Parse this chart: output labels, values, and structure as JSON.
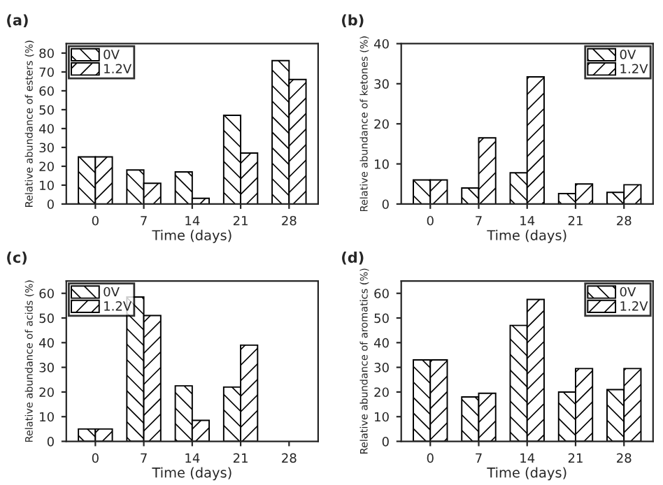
{
  "chart_data": [
    {
      "type": "bar",
      "title": "(a)",
      "xlabel": "Time (days)",
      "ylabel": "Relative abundance of esters (%)",
      "categories": [
        "0",
        "7",
        "14",
        "21",
        "28"
      ],
      "ylim": [
        0,
        85
      ],
      "yticks": [
        0,
        10,
        20,
        30,
        40,
        50,
        60,
        70,
        80
      ],
      "legend": "top left",
      "grid": false,
      "series": [
        {
          "name": "0V",
          "color": "#000000",
          "values": [
            25,
            18,
            17,
            47,
            76
          ]
        },
        {
          "name": "1.2V",
          "color": "#000000",
          "values": [
            25,
            11,
            3,
            27,
            66
          ]
        }
      ]
    },
    {
      "type": "bar",
      "title": "(b)",
      "xlabel": "Time (days)",
      "ylabel": "Relative abundance of ketones (%)",
      "categories": [
        "0",
        "7",
        "14",
        "21",
        "28"
      ],
      "ylim": [
        0,
        40
      ],
      "yticks": [
        0,
        10,
        20,
        30,
        40
      ],
      "legend": "top right",
      "grid": false,
      "series": [
        {
          "name": "0V",
          "color": "#000000",
          "values": [
            6,
            4,
            7.8,
            2.6,
            2.9
          ]
        },
        {
          "name": "1.2V",
          "color": "#000000",
          "values": [
            6,
            16.5,
            31.7,
            5,
            4.8
          ]
        }
      ]
    },
    {
      "type": "bar",
      "title": "(c)",
      "xlabel": "Time (days)",
      "ylabel": "Relative abundance of acids (%)",
      "categories": [
        "0",
        "7",
        "14",
        "21",
        "28"
      ],
      "ylim": [
        0,
        65
      ],
      "yticks": [
        0,
        10,
        20,
        30,
        40,
        50,
        60
      ],
      "legend": "top left",
      "grid": false,
      "series": [
        {
          "name": "0V",
          "color": "#000000",
          "values": [
            5,
            58.5,
            22.5,
            22,
            null
          ]
        },
        {
          "name": "1.2V",
          "color": "#000000",
          "values": [
            5,
            51,
            8.5,
            39,
            null
          ]
        }
      ]
    },
    {
      "type": "bar",
      "title": "(d)",
      "xlabel": "Time (days)",
      "ylabel": "Relative abundance of aromatics (%)",
      "categories": [
        "0",
        "7",
        "14",
        "21",
        "28"
      ],
      "ylim": [
        0,
        65
      ],
      "yticks": [
        0,
        10,
        20,
        30,
        40,
        50,
        60
      ],
      "legend": "top right",
      "grid": false,
      "series": [
        {
          "name": "0V",
          "color": "#000000",
          "values": [
            33,
            18,
            47,
            20,
            21
          ]
        },
        {
          "name": "1.2V",
          "color": "#000000",
          "values": [
            33,
            19.5,
            57.5,
            29.5,
            29.5
          ]
        }
      ]
    }
  ]
}
